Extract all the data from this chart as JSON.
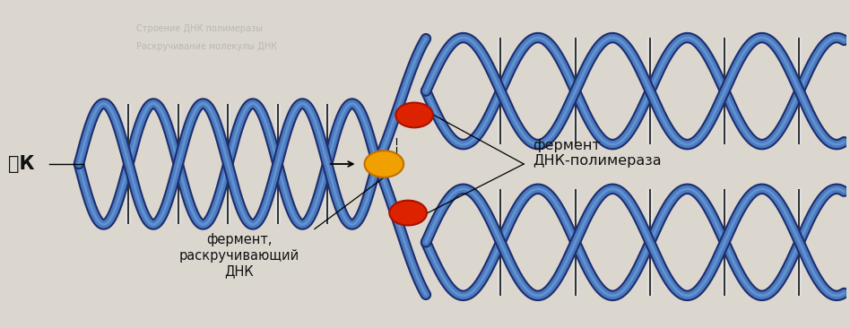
{
  "background_color": "#dbd7cf",
  "dna_outer_color": "#1e2d6e",
  "dna_inner_color": "#4a7abf",
  "dna_light_color": "#7aabdf",
  "crossbar_color": "#111111",
  "crossbar_fill": "#e8e8e8",
  "helicase_color": "#dd2200",
  "helicase_outline": "#aa1100",
  "polymerase_color": "#f0a000",
  "polymerase_outline": "#c07000",
  "label_dnk": "䅍К",
  "label_ferment_unwinding": "фермент,\nраскручивающий\nДНК",
  "label_ferment_polymerase": "фермент\nДНК-полимераза",
  "figsize": [
    9.48,
    3.66
  ],
  "dpi": 100,
  "text_color": "#111111"
}
